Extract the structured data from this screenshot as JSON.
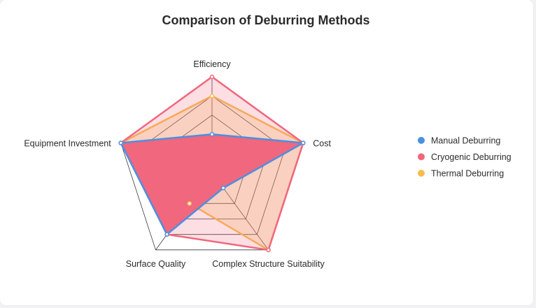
{
  "chart_data": {
    "type": "radar",
    "title": "Comparison of Deburring Methods",
    "axes": [
      "Efficiency",
      "Cost",
      "Complex Structure Suitability",
      "Surface Quality",
      "Equipment Investment"
    ],
    "max": 5,
    "levels": 5,
    "legend_position": "right",
    "series": [
      {
        "name": "Manual Deburring",
        "color": "#4a90e2",
        "values": [
          2,
          5,
          1,
          4,
          5
        ]
      },
      {
        "name": "Cryogenic Deburring",
        "color": "#f0677e",
        "values": [
          5,
          5,
          5,
          4,
          5
        ]
      },
      {
        "name": "Thermal Deburring",
        "color": "#f8bd4f",
        "values": [
          4,
          5,
          5,
          2,
          5
        ]
      }
    ]
  }
}
